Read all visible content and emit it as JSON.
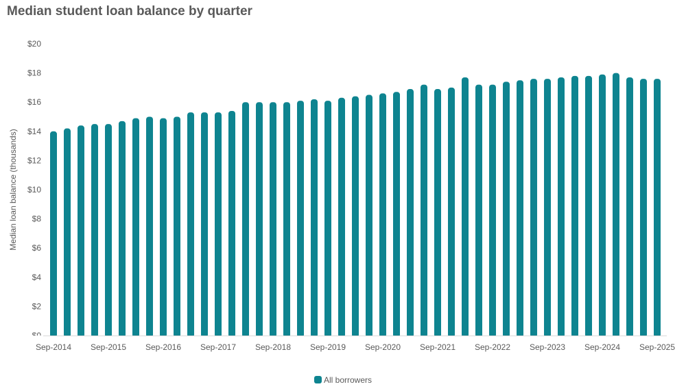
{
  "chart_data": {
    "type": "bar",
    "title": "Median student loan balance by quarter",
    "xlabel": "",
    "ylabel": "Median loan balance (thousands)",
    "ylim": [
      0,
      20
    ],
    "yticks": [
      "$0",
      "$2",
      "$4",
      "$6",
      "$8",
      "$10",
      "$12",
      "$14",
      "$16",
      "$18",
      "$20"
    ],
    "xtick_labels": [
      "Sep-2014",
      "Sep-2015",
      "Sep-2016",
      "Sep-2017",
      "Sep-2018",
      "Sep-2019",
      "Sep-2020",
      "Sep-2021",
      "Sep-2022",
      "Sep-2023",
      "Sep-2024",
      "Sep-2025"
    ],
    "categories": [
      "Sep-2014",
      "Dec-2014",
      "Mar-2015",
      "Jun-2015",
      "Sep-2015",
      "Dec-2015",
      "Mar-2016",
      "Jun-2016",
      "Sep-2016",
      "Dec-2016",
      "Mar-2017",
      "Jun-2017",
      "Sep-2017",
      "Dec-2017",
      "Mar-2018",
      "Jun-2018",
      "Sep-2018",
      "Dec-2018",
      "Mar-2019",
      "Jun-2019",
      "Sep-2019",
      "Dec-2019",
      "Mar-2020",
      "Jun-2020",
      "Sep-2020",
      "Dec-2020",
      "Mar-2021",
      "Jun-2021",
      "Sep-2021",
      "Dec-2021",
      "Mar-2022",
      "Jun-2022",
      "Sep-2022",
      "Dec-2022",
      "Mar-2023",
      "Jun-2023",
      "Sep-2023",
      "Dec-2023",
      "Mar-2024",
      "Jun-2024",
      "Sep-2024",
      "Dec-2024",
      "Mar-2025",
      "Jun-2025",
      "Sep-2025"
    ],
    "series": [
      {
        "name": "All borrowers",
        "color": "#0e8490",
        "values": [
          14.0,
          14.2,
          14.4,
          14.5,
          14.5,
          14.7,
          14.9,
          15.0,
          14.9,
          15.0,
          15.3,
          15.3,
          15.3,
          15.4,
          16.0,
          16.0,
          16.0,
          16.0,
          16.1,
          16.2,
          16.1,
          16.3,
          16.4,
          16.5,
          16.6,
          16.7,
          16.9,
          17.2,
          16.9,
          17.0,
          17.7,
          17.2,
          17.2,
          17.4,
          17.5,
          17.6,
          17.6,
          17.7,
          17.8,
          17.8,
          17.9,
          18.0,
          17.7,
          17.6,
          17.6
        ]
      }
    ],
    "grid": false,
    "legend": "bottom"
  }
}
